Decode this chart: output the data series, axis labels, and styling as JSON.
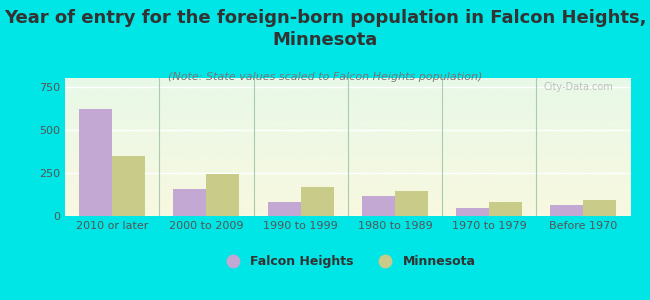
{
  "title": "Year of entry for the foreign-born population in Falcon Heights,\nMinnesota",
  "subtitle": "(Note: State values scaled to Falcon Heights population)",
  "categories": [
    "2010 or later",
    "2000 to 2009",
    "1990 to 1999",
    "1980 to 1989",
    "1970 to 1979",
    "Before 1970"
  ],
  "falcon_heights": [
    620,
    155,
    80,
    115,
    45,
    65
  ],
  "minnesota": [
    350,
    245,
    170,
    145,
    80,
    90
  ],
  "falcon_color": "#c4a8d4",
  "minnesota_color": "#c8cc88",
  "fig_bg_color": "#00e5e5",
  "plot_bg_top": "#e8f8e8",
  "plot_bg_bottom": "#f8f8e0",
  "ylim": [
    0,
    800
  ],
  "yticks": [
    0,
    250,
    500,
    750
  ],
  "bar_width": 0.35,
  "title_fontsize": 13,
  "subtitle_fontsize": 8,
  "tick_fontsize": 8,
  "legend_fontsize": 9,
  "watermark": "City-Data.com"
}
